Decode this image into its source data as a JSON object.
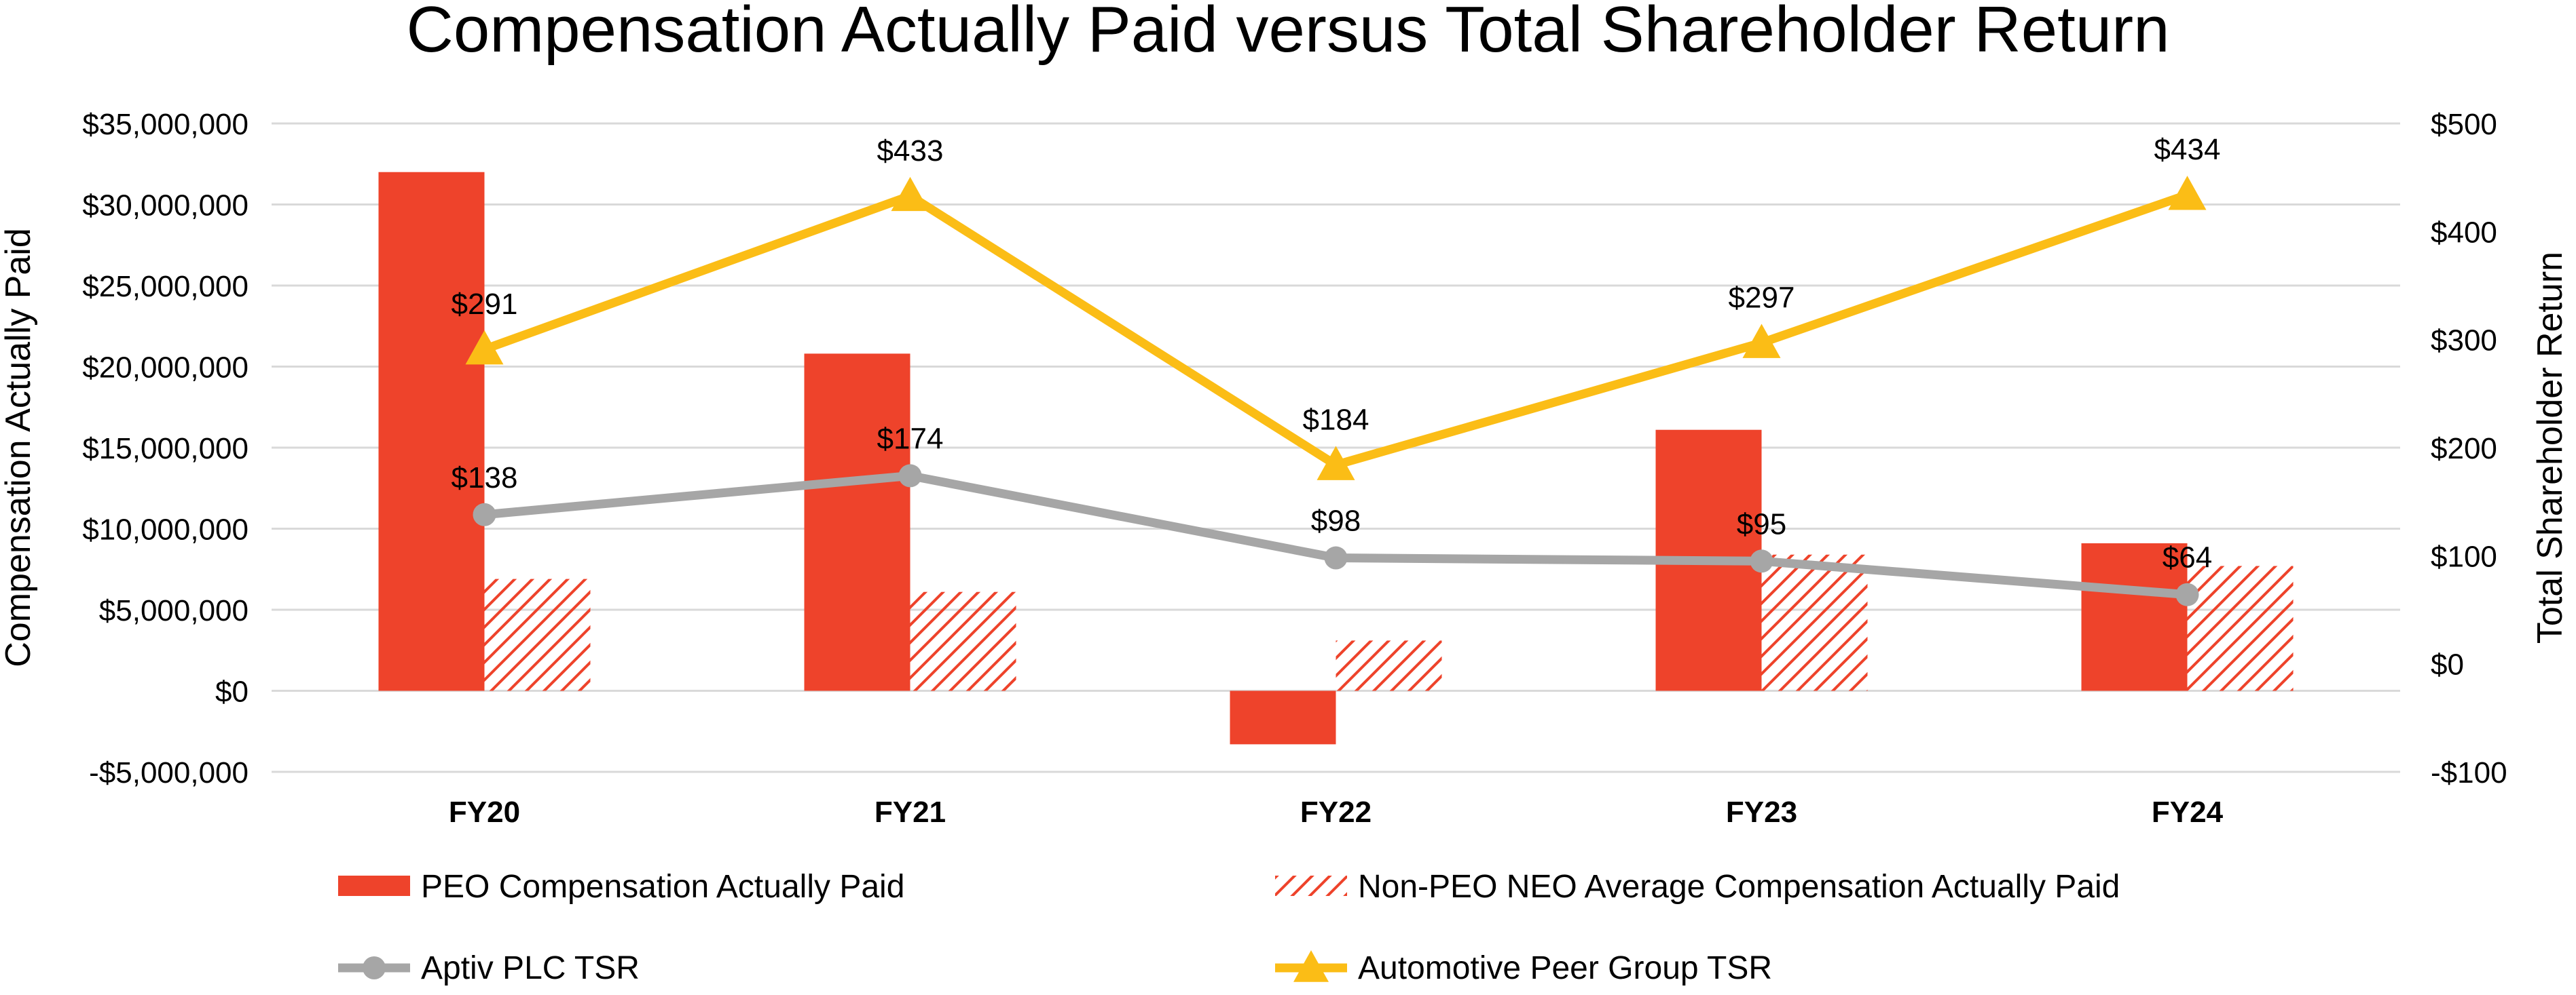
{
  "chart_data": {
    "type": "bar",
    "title": "Compensation Actually Paid versus Total Shareholder Return",
    "categories": [
      "FY20",
      "FY21",
      "FY22",
      "FY23",
      "FY24"
    ],
    "y_left": {
      "label": "Compensation Actually Paid",
      "range": [
        -5000000,
        35000000
      ],
      "ticks": [
        -5000000,
        0,
        5000000,
        10000000,
        15000000,
        20000000,
        25000000,
        30000000,
        35000000
      ],
      "tick_labels": [
        "-$5,000,000",
        "$0",
        "$5,000,000",
        "$10,000,000",
        "$15,000,000",
        "$20,000,000",
        "$25,000,000",
        "$30,000,000",
        "$35,000,000"
      ]
    },
    "y_right": {
      "label": "Total Shareholder Return",
      "range": [
        -100,
        500
      ],
      "ticks": [
        -100,
        0,
        100,
        200,
        300,
        400,
        500
      ],
      "tick_labels": [
        "-$100",
        "$0",
        "$100",
        "$200",
        "$300",
        "$400",
        "$500"
      ]
    },
    "series": [
      {
        "name": "PEO Compensation Actually Paid",
        "kind": "bar",
        "axis": "left",
        "color": "#ee432b",
        "values": [
          32000000,
          20800000,
          -3300000,
          16100000,
          9100000
        ]
      },
      {
        "name": "Non-PEO NEO Average Compensation Actually Paid",
        "kind": "hatched-bar",
        "axis": "left",
        "color": "#ee432b",
        "values": [
          6900000,
          6100000,
          3100000,
          8400000,
          7700000
        ]
      },
      {
        "name": "Aptiv PLC TSR",
        "kind": "line",
        "axis": "right",
        "color": "#a6a6a6",
        "marker": "circle",
        "values": [
          138,
          174,
          98,
          95,
          64
        ],
        "labels": [
          "$138",
          "$174",
          "$98",
          "$95",
          "$64"
        ]
      },
      {
        "name": "Automotive Peer Group TSR",
        "kind": "line",
        "axis": "right",
        "color": "#fbbd16",
        "marker": "triangle",
        "values": [
          291,
          433,
          184,
          297,
          434
        ],
        "labels": [
          "$291",
          "$433",
          "$184",
          "$297",
          "$434"
        ]
      }
    ],
    "gridlines": true,
    "legend_position": "bottom"
  }
}
